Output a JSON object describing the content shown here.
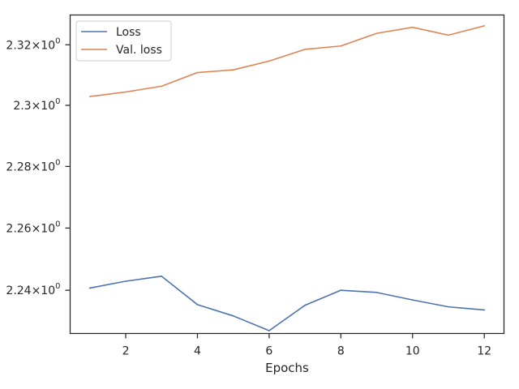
{
  "chart_data": {
    "type": "line",
    "title": "",
    "xlabel": "Epochs",
    "ylabel": "",
    "xlim": [
      0.45,
      12.55
    ],
    "ylim": [
      2.2262,
      2.3299
    ],
    "x_ticks": [
      2,
      4,
      6,
      8,
      10,
      12
    ],
    "y_ticks": [
      {
        "value": 2.24,
        "base": "2.24",
        "exp": "0"
      },
      {
        "value": 2.26,
        "base": "2.26",
        "exp": "0"
      },
      {
        "value": 2.28,
        "base": "2.28",
        "exp": "0"
      },
      {
        "value": 2.3,
        "base": "2.3",
        "exp": "0"
      },
      {
        "value": 2.32,
        "base": "2.32",
        "exp": "0"
      }
    ],
    "y_scale": "log",
    "grid": false,
    "legend_position": "top-left",
    "x": [
      1,
      2,
      3,
      4,
      5,
      6,
      7,
      8,
      9,
      10,
      11,
      12
    ],
    "series": [
      {
        "name": "Loss",
        "color": "#4c72b0",
        "values": [
          2.2407,
          2.2429,
          2.2445,
          2.2354,
          2.2318,
          2.2271,
          2.2352,
          2.24,
          2.2393,
          2.2369,
          2.2347,
          2.2337
        ]
      },
      {
        "name": "Val. loss",
        "color": "#dd8452",
        "values": [
          2.3029,
          2.3044,
          2.3063,
          2.3108,
          2.3117,
          2.3146,
          2.3185,
          2.3196,
          2.3238,
          2.3258,
          2.3232,
          2.3263
        ]
      }
    ]
  }
}
